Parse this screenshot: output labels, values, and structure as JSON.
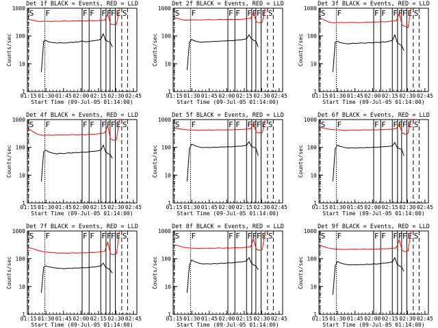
{
  "chart_data": {
    "type": "line",
    "panels": [
      {
        "title": "Det 1f BLACK = Events, RED = LLD",
        "red": [
          390,
          380,
          360,
          340,
          330,
          335,
          340,
          340,
          330,
          345,
          335,
          340,
          350,
          345,
          340,
          350,
          345,
          355,
          350,
          345,
          350,
          360,
          350,
          355,
          360,
          365,
          370,
          600,
          270,
          255,
          260,
          1000
        ],
        "black": [
          5,
          65,
          70,
          62,
          60,
          58,
          57,
          55,
          58,
          56,
          56,
          56,
          58,
          60,
          58,
          62,
          60,
          64,
          66,
          62,
          62,
          64,
          66,
          68,
          70,
          72,
          78,
          120,
          70,
          65,
          60,
          40
        ]
      },
      {
        "title": "Det 2f BLACK = Events, RED = LLD",
        "red": [
          450,
          430,
          400,
          380,
          370,
          375,
          380,
          385,
          375,
          380,
          380,
          385,
          390,
          380,
          385,
          390,
          395,
          385,
          395,
          390,
          395,
          400,
          395,
          400,
          410,
          420,
          430,
          700,
          320,
          300,
          310,
          1000
        ],
        "black": [
          6,
          60,
          75,
          68,
          64,
          62,
          60,
          60,
          62,
          62,
          62,
          63,
          64,
          64,
          65,
          66,
          66,
          67,
          68,
          68,
          68,
          70,
          72,
          72,
          74,
          76,
          80,
          110,
          80,
          70,
          65,
          40
        ]
      },
      {
        "title": "Det 3f BLACK = Events, RED = LLD",
        "red": [
          430,
          400,
          350,
          320,
          300,
          300,
          305,
          310,
          300,
          305,
          310,
          305,
          310,
          300,
          305,
          310,
          315,
          310,
          320,
          315,
          320,
          330,
          320,
          330,
          340,
          345,
          350,
          650,
          250,
          220,
          200,
          1000
        ],
        "black": [
          5,
          60,
          65,
          58,
          56,
          54,
          53,
          52,
          54,
          55,
          54,
          55,
          56,
          56,
          55,
          57,
          58,
          56,
          58,
          60,
          58,
          60,
          62,
          60,
          64,
          66,
          70,
          110,
          60,
          50,
          45,
          30
        ]
      },
      {
        "title": "Det 4f BLACK = Events, RED = LLD",
        "red": [
          440,
          400,
          340,
          300,
          280,
          270,
          275,
          280,
          270,
          275,
          280,
          280,
          285,
          275,
          280,
          290,
          285,
          280,
          290,
          285,
          290,
          300,
          295,
          300,
          310,
          320,
          330,
          600,
          200,
          180,
          190,
          1000
        ],
        "black": [
          6,
          70,
          80,
          70,
          66,
          62,
          60,
          58,
          62,
          60,
          60,
          62,
          64,
          62,
          64,
          66,
          64,
          66,
          68,
          66,
          68,
          70,
          72,
          72,
          74,
          76,
          80,
          120,
          70,
          60,
          55,
          40
        ]
      },
      {
        "title": "Det 5f BLACK = Events, RED = LLD",
        "red": [
          500,
          480,
          460,
          440,
          430,
          425,
          420,
          420,
          410,
          415,
          420,
          420,
          425,
          415,
          420,
          430,
          425,
          420,
          430,
          425,
          430,
          440,
          435,
          440,
          450,
          460,
          470,
          700,
          350,
          330,
          340,
          1000
        ],
        "black": [
          6,
          90,
          130,
          120,
          110,
          105,
          100,
          98,
          100,
          100,
          98,
          100,
          102,
          100,
          102,
          104,
          102,
          104,
          106,
          104,
          106,
          108,
          110,
          110,
          112,
          116,
          120,
          160,
          110,
          100,
          95,
          50
        ]
      },
      {
        "title": "Det 6f BLACK = Events, RED = LLD",
        "red": [
          520,
          500,
          470,
          450,
          440,
          430,
          425,
          420,
          410,
          415,
          420,
          420,
          425,
          415,
          420,
          430,
          425,
          420,
          430,
          425,
          430,
          440,
          435,
          440,
          450,
          460,
          470,
          700,
          330,
          300,
          320,
          1000
        ],
        "black": [
          6,
          90,
          120,
          110,
          105,
          100,
          96,
          95,
          96,
          96,
          95,
          96,
          98,
          96,
          98,
          100,
          98,
          100,
          102,
          100,
          102,
          104,
          106,
          106,
          108,
          110,
          115,
          150,
          100,
          90,
          85,
          50
        ]
      },
      {
        "title": "Det 7f BLACK = Events, RED = LLD",
        "red": [
          250,
          240,
          220,
          200,
          190,
          180,
          175,
          170,
          165,
          165,
          160,
          160,
          162,
          158,
          160,
          165,
          162,
          160,
          165,
          162,
          165,
          170,
          168,
          170,
          175,
          180,
          185,
          400,
          150,
          140,
          150,
          1000
        ],
        "black": [
          6,
          50,
          55,
          52,
          50,
          48,
          47,
          46,
          45,
          45,
          44,
          45,
          46,
          45,
          46,
          47,
          46,
          47,
          48,
          47,
          48,
          49,
          50,
          50,
          52,
          54,
          56,
          70,
          50,
          45,
          40,
          30
        ]
      },
      {
        "title": "Det 8f BLACK = Events, RED = LLD",
        "red": [
          320,
          300,
          280,
          260,
          250,
          245,
          240,
          240,
          235,
          238,
          240,
          240,
          242,
          238,
          240,
          245,
          242,
          240,
          245,
          242,
          245,
          250,
          248,
          250,
          255,
          260,
          265,
          500,
          220,
          200,
          210,
          1000
        ],
        "black": [
          6,
          60,
          90,
          80,
          75,
          70,
          67,
          65,
          66,
          66,
          65,
          66,
          68,
          66,
          68,
          70,
          68,
          70,
          72,
          70,
          72,
          74,
          76,
          76,
          78,
          80,
          85,
          110,
          70,
          60,
          55,
          40
        ]
      },
      {
        "title": "Det 9f BLACK = Events, RED = LLD",
        "red": [
          300,
          280,
          260,
          240,
          230,
          225,
          222,
          220,
          215,
          218,
          220,
          220,
          222,
          218,
          220,
          225,
          222,
          220,
          225,
          222,
          225,
          230,
          228,
          230,
          235,
          240,
          245,
          480,
          200,
          180,
          190,
          1000
        ],
        "black": [
          5,
          55,
          80,
          72,
          68,
          64,
          62,
          60,
          61,
          61,
          60,
          61,
          62,
          61,
          62,
          64,
          62,
          64,
          66,
          64,
          66,
          68,
          70,
          70,
          72,
          74,
          78,
          110,
          65,
          55,
          50,
          35
        ]
      }
    ],
    "ylabel": "Counts/sec",
    "xlabel": "Start Time (09-Jul-05 01:14:00)",
    "xticks": [
      "01:15",
      "01:30",
      "01:45",
      "02:00",
      "02:15",
      "02:30",
      "02:45"
    ],
    "yticks": [
      "1",
      "10",
      "100",
      "1000"
    ],
    "yscale": "log",
    "ylim": [
      1,
      1000
    ],
    "series_colors": {
      "red": "#ff0000",
      "black": "#000000"
    },
    "markers": [
      {
        "t": 1.0,
        "style": "dashed",
        "label": "S"
      },
      {
        "t": 15.0,
        "style": "dotted",
        "label": "F"
      },
      {
        "t": 47.0,
        "style": "solid",
        "label": "F"
      },
      {
        "t": 53.0,
        "style": "solid",
        "label": "F"
      },
      {
        "t": 63.0,
        "style": "solid",
        "label": "F"
      },
      {
        "t": 67.5,
        "style": "solid",
        "label": "F"
      },
      {
        "t": 71.0,
        "style": "solid",
        "label": "F"
      },
      {
        "t": 75.5,
        "style": "solid",
        "label": "E"
      },
      {
        "t": 81.0,
        "style": "dashed",
        "label": "S"
      },
      {
        "t": 86.0,
        "style": "dashed",
        "label": ""
      }
    ]
  }
}
